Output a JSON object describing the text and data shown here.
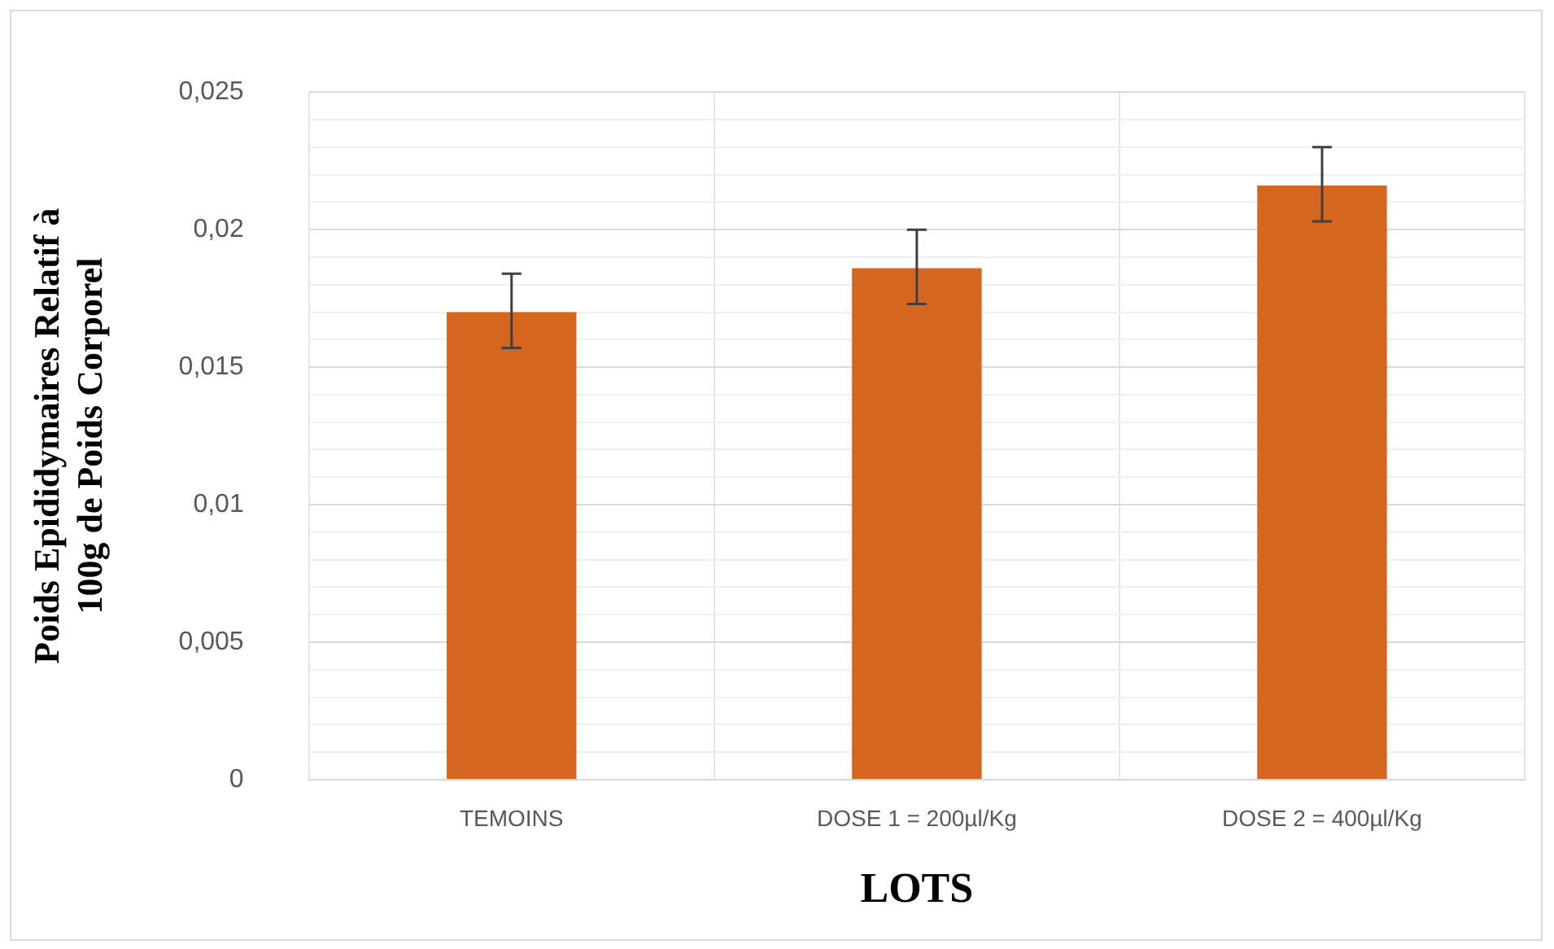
{
  "chart_data": {
    "type": "bar",
    "xlabel": "LOTS",
    "ylabel": "Poids Epididymaires Relatif à 100g de Poids Corporel",
    "categories": [
      "TEMOINS",
      "DOSE 1 = 200µl/Kg",
      "DOSE 2 = 400µl/Kg"
    ],
    "values": [
      0.017,
      0.0186,
      0.0216
    ],
    "color": "#d5661f",
    "errors": [
      [
        0.0157,
        0.0184
      ],
      [
        0.0173,
        0.02
      ],
      [
        0.0203,
        0.023
      ]
    ],
    "ylim": [
      0,
      0.025
    ],
    "yticks": [
      {
        "value": 0,
        "label": "0"
      },
      {
        "value": 0.001,
        "label": null
      },
      {
        "value": 0.002,
        "label": null
      },
      {
        "value": 0.003,
        "label": null
      },
      {
        "value": 0.004,
        "label": null
      },
      {
        "value": 0.005,
        "label": "0,005"
      },
      {
        "value": 0.006,
        "label": null
      },
      {
        "value": 0.007,
        "label": null
      },
      {
        "value": 0.008,
        "label": null
      },
      {
        "value": 0.009,
        "label": null
      },
      {
        "value": 0.01,
        "label": "0,01"
      },
      {
        "value": 0.011,
        "label": null
      },
      {
        "value": 0.012,
        "label": null
      },
      {
        "value": 0.013,
        "label": null
      },
      {
        "value": 0.014,
        "label": null
      },
      {
        "value": 0.015,
        "label": "0,015"
      },
      {
        "value": 0.016,
        "label": null
      },
      {
        "value": 0.017,
        "label": null
      },
      {
        "value": 0.018,
        "label": null
      },
      {
        "value": 0.019,
        "label": null
      },
      {
        "value": 0.02,
        "label": "0,02"
      },
      {
        "value": 0.021,
        "label": null
      },
      {
        "value": 0.022,
        "label": null
      },
      {
        "value": 0.023,
        "label": null
      },
      {
        "value": 0.024,
        "label": null
      },
      {
        "value": 0.025,
        "label": "0,025"
      }
    ],
    "grid": true,
    "legend": false
  }
}
